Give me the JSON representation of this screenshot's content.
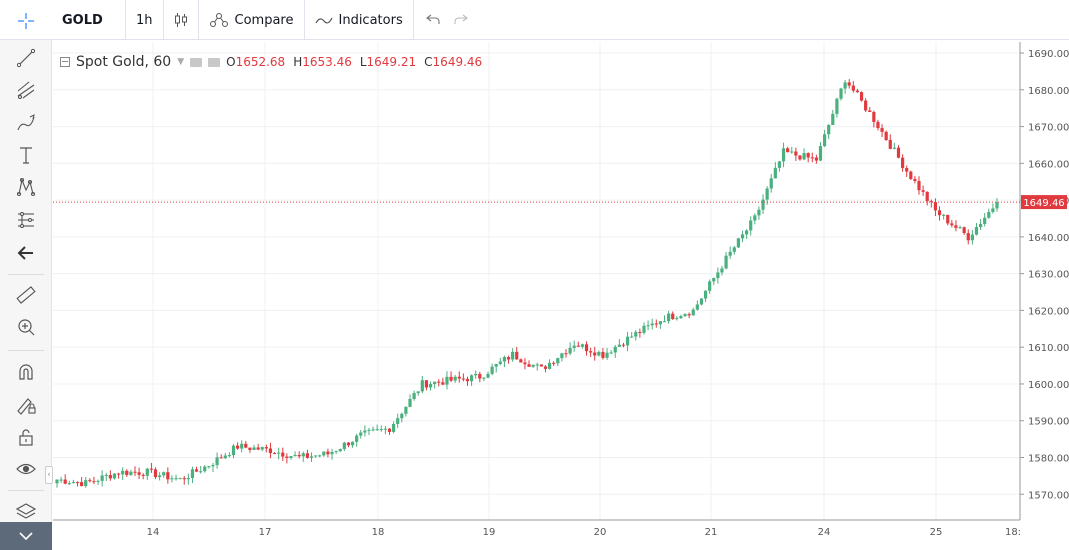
{
  "toolbar": {
    "symbol": "GOLD",
    "interval": "1h",
    "compare_label": "Compare",
    "indicators_label": "Indicators"
  },
  "left_tools": [
    {
      "name": "crosshair-icon"
    },
    {
      "name": "trend-line-icon"
    },
    {
      "name": "fib-retracement-icon"
    },
    {
      "name": "brush-icon"
    },
    {
      "name": "text-tool-icon"
    },
    {
      "name": "pattern-icon"
    },
    {
      "name": "prediction-tool-icon"
    },
    {
      "name": "back-arrow-icon"
    },
    {
      "name": "ruler-icon"
    },
    {
      "name": "zoom-in-icon"
    },
    {
      "name": "magnet-icon"
    },
    {
      "name": "lock-drawing-icon"
    },
    {
      "name": "unlock-icon"
    },
    {
      "name": "eye-icon"
    },
    {
      "name": "layers-icon"
    }
  ],
  "legend": {
    "title": "Spot Gold, 60",
    "o_label": "O",
    "o_value": "1652.68",
    "h_label": "H",
    "h_value": "1653.46",
    "l_label": "L",
    "l_value": "1649.21",
    "c_label": "C",
    "c_value": "1649.46"
  },
  "colors": {
    "up": "#4bb07f",
    "down": "#e0393e",
    "grid": "#eef0f4",
    "axis_text": "#555555",
    "price_line": "#e0393e"
  },
  "chart_data": {
    "type": "candlestick",
    "title": "Spot Gold, 60",
    "y_ticks": [
      "1570.00",
      "1580.00",
      "1590.00",
      "1600.00",
      "1610.00",
      "1620.00",
      "1630.00",
      "1640.00",
      "1650.00",
      "1660.00",
      "1670.00",
      "1680.00",
      "1690.00"
    ],
    "x_ticks": [
      "14",
      "17",
      "18",
      "19",
      "20",
      "21",
      "24",
      "25",
      "18:"
    ],
    "ylim": [
      1563,
      1693
    ],
    "last_price": "1649.46",
    "last_price_value": 1649.46,
    "close_path": [
      [
        "14",
        1574
      ],
      [
        "14",
        1573
      ],
      [
        "14",
        1576
      ],
      [
        "14",
        1576
      ],
      [
        "17",
        1574
      ],
      [
        "17",
        1578
      ],
      [
        "17",
        1583
      ],
      [
        "17",
        1582
      ],
      [
        "18",
        1580
      ],
      [
        "18",
        1581
      ],
      [
        "18",
        1586
      ],
      [
        "18",
        1588
      ],
      [
        "19",
        1600
      ],
      [
        "19",
        1601
      ],
      [
        "19",
        1602
      ],
      [
        "19",
        1608
      ],
      [
        "20",
        1604
      ],
      [
        "20",
        1611
      ],
      [
        "20",
        1608
      ],
      [
        "20",
        1613
      ],
      [
        "21",
        1618
      ],
      [
        "21",
        1620
      ],
      [
        "21",
        1634
      ],
      [
        "21",
        1645
      ],
      [
        "24",
        1663
      ],
      [
        "24",
        1661
      ],
      [
        "24",
        1683
      ],
      [
        "24",
        1672
      ],
      [
        "25",
        1658
      ],
      [
        "25",
        1647
      ],
      [
        "25",
        1640
      ],
      [
        "25",
        1649.46
      ]
    ],
    "candle_count": 230
  }
}
